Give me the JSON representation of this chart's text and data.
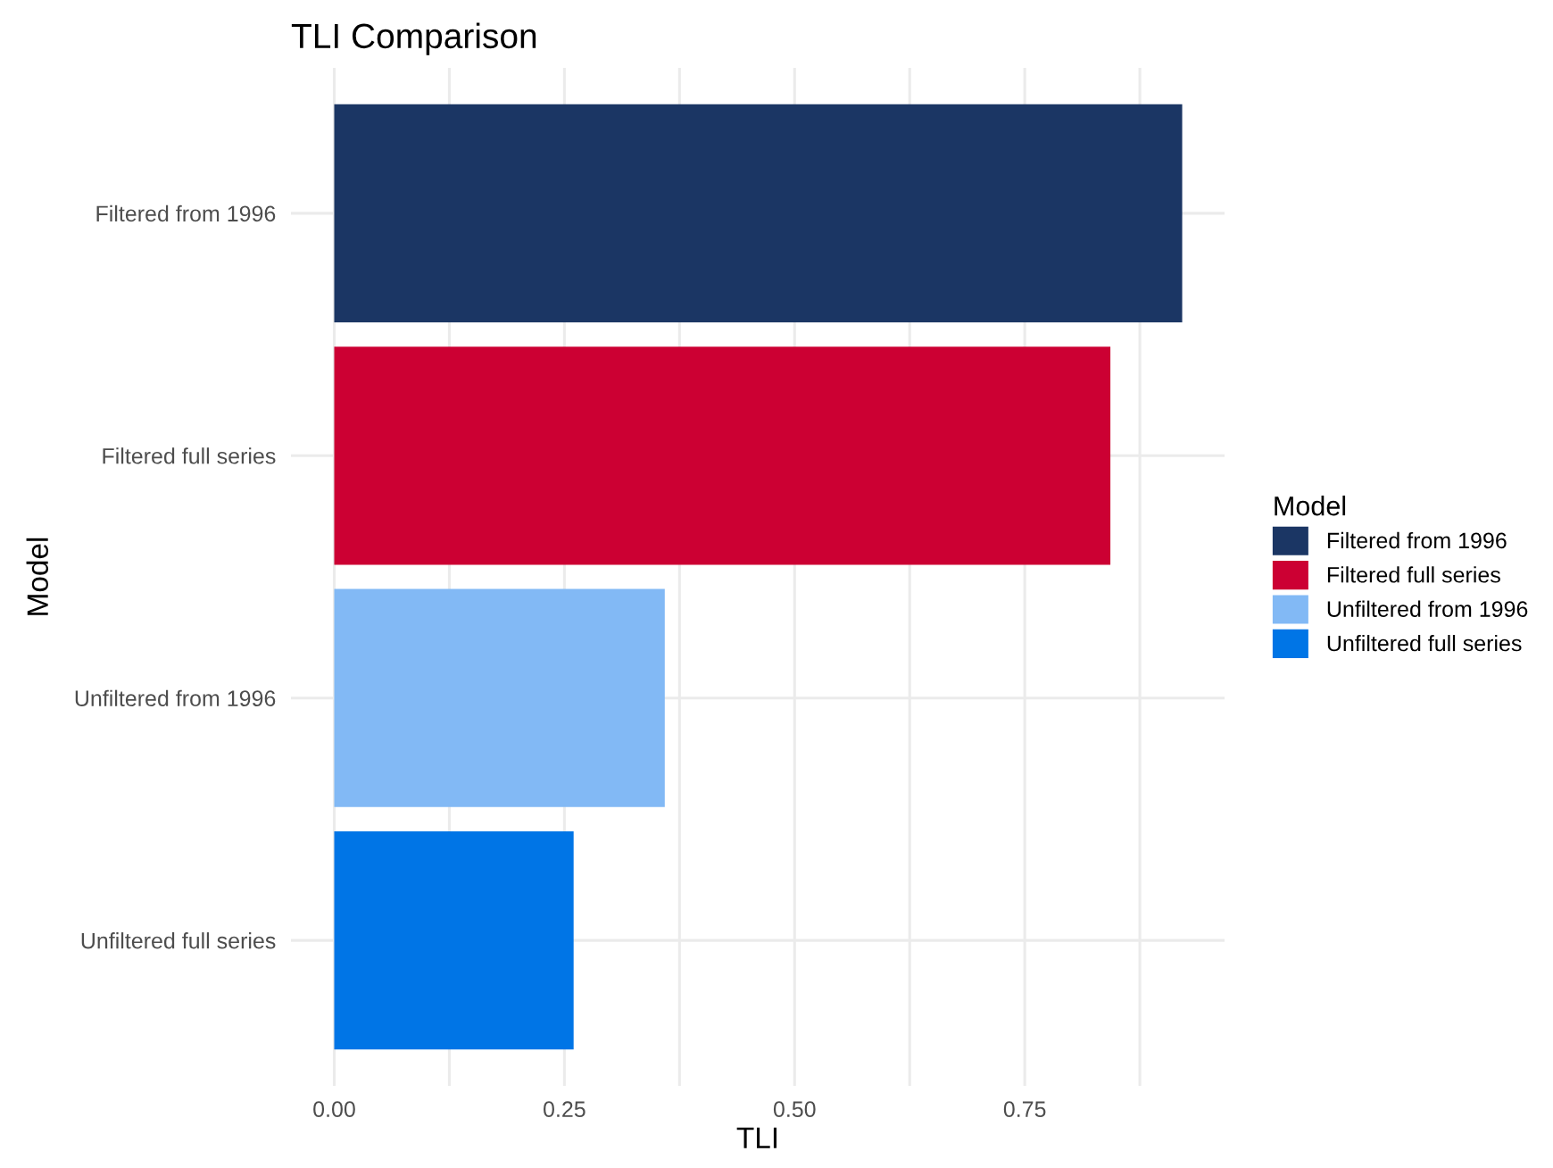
{
  "chart_data": {
    "type": "bar",
    "orientation": "horizontal",
    "title": "TLI Comparison",
    "xlabel": "TLI",
    "ylabel": "Model",
    "legend_title": "Model",
    "categories": [
      "Filtered from 1996",
      "Filtered full series",
      "Unfiltered from 1996",
      "Unfiltered full series"
    ],
    "series": [
      {
        "name": "Filtered from 1996",
        "color": "#1b3664",
        "values": [
          0.921,
          null,
          null,
          null
        ]
      },
      {
        "name": "Filtered full series",
        "color": "#cc0033",
        "values": [
          null,
          0.843,
          null,
          null
        ]
      },
      {
        "name": "Unfiltered from 1996",
        "color": "#82b9f5",
        "values": [
          null,
          null,
          0.359,
          null
        ]
      },
      {
        "name": "Unfiltered full series",
        "color": "#0075e6",
        "values": [
          null,
          null,
          null,
          0.26
        ]
      }
    ],
    "xlim": [
      -0.047,
      0.967
    ],
    "xticks": [
      {
        "value": 0,
        "label": "0.00"
      },
      {
        "value": 0.125,
        "label": null
      },
      {
        "value": 0.25,
        "label": "0.25"
      },
      {
        "value": 0.375,
        "label": null
      },
      {
        "value": 0.5,
        "label": "0.50"
      },
      {
        "value": 0.625,
        "label": null
      },
      {
        "value": 0.75,
        "label": "0.75"
      },
      {
        "value": 0.875,
        "label": null
      }
    ],
    "grid": true,
    "legend": "right"
  }
}
